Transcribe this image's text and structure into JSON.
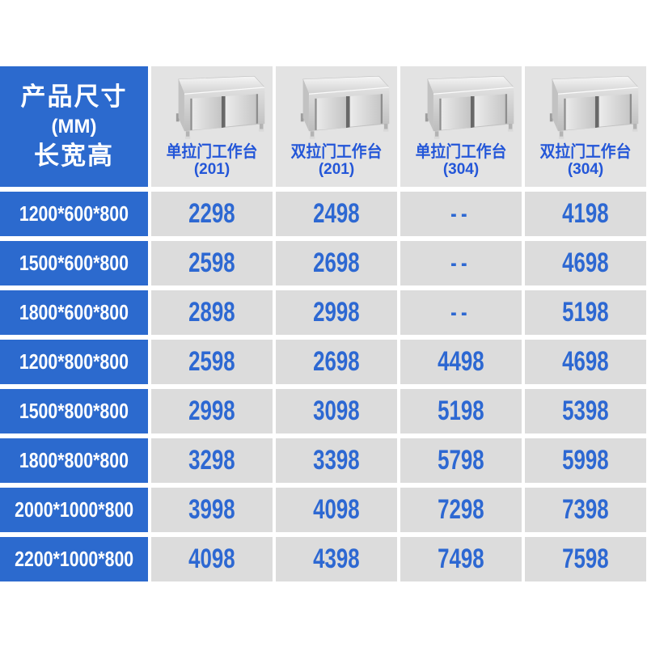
{
  "colors": {
    "blue_bg": "#2c6ace",
    "header_cell_gray": "#e3e3e3",
    "price_cell_gray": "#dcdcdc",
    "price_text_blue": "#2d68d2",
    "column_label_blue": "#2356d8",
    "corner_text_white": "#ffffff",
    "page_background": "#ffffff"
  },
  "corner": {
    "line1": "产品尺寸",
    "line2": "(MM)",
    "line3": "长宽高"
  },
  "columns": [
    {
      "name": "单拉门工作台",
      "code": "(201)",
      "image": "stainless-steel-sliding-door-workbench"
    },
    {
      "name": "双拉门工作台",
      "code": "(201)",
      "image": "stainless-steel-sliding-door-workbench"
    },
    {
      "name": "单拉门工作台",
      "code": "(304)",
      "image": "stainless-steel-sliding-door-workbench"
    },
    {
      "name": "双拉门工作台",
      "code": "(304)",
      "image": "stainless-steel-sliding-door-workbench"
    }
  ],
  "rows": [
    {
      "dims": "1200*600*800",
      "prices": [
        "2298",
        "2498",
        "--",
        "4198"
      ]
    },
    {
      "dims": "1500*600*800",
      "prices": [
        "2598",
        "2698",
        "--",
        "4698"
      ]
    },
    {
      "dims": "1800*600*800",
      "prices": [
        "2898",
        "2998",
        "--",
        "5198"
      ]
    },
    {
      "dims": "1200*800*800",
      "prices": [
        "2598",
        "2698",
        "4498",
        "4698"
      ]
    },
    {
      "dims": "1500*800*800",
      "prices": [
        "2998",
        "3098",
        "5198",
        "5398"
      ]
    },
    {
      "dims": "1800*800*800",
      "prices": [
        "3298",
        "3398",
        "5798",
        "5998"
      ]
    },
    {
      "dims": "2000*1000*800",
      "prices": [
        "3998",
        "4098",
        "7298",
        "7398"
      ]
    },
    {
      "dims": "2200*1000*800",
      "prices": [
        "4098",
        "4398",
        "7498",
        "7598"
      ]
    }
  ],
  "chart_data": {
    "type": "table",
    "title": "产品尺寸(MM) 长宽高 价格表",
    "columns": [
      "产品尺寸(MM)长宽高",
      "单拉门工作台(201)",
      "双拉门工作台(201)",
      "单拉门工作台(304)",
      "双拉门工作台(304)"
    ],
    "rows": [
      [
        "1200*600*800",
        2298,
        2498,
        null,
        4198
      ],
      [
        "1500*600*800",
        2598,
        2698,
        null,
        4698
      ],
      [
        "1800*600*800",
        2898,
        2998,
        null,
        5198
      ],
      [
        "1200*800*800",
        2598,
        2698,
        4498,
        4698
      ],
      [
        "1500*800*800",
        2998,
        3098,
        5198,
        5398
      ],
      [
        "1800*800*800",
        3298,
        3398,
        5798,
        5998
      ],
      [
        "2000*1000*800",
        3998,
        4098,
        7298,
        7398
      ],
      [
        "2200*1000*800",
        4098,
        4398,
        7498,
        7598
      ]
    ],
    "notes": "null rendered as -- (not available); prices in blue on gray cells; dimension labels white on blue cells"
  }
}
